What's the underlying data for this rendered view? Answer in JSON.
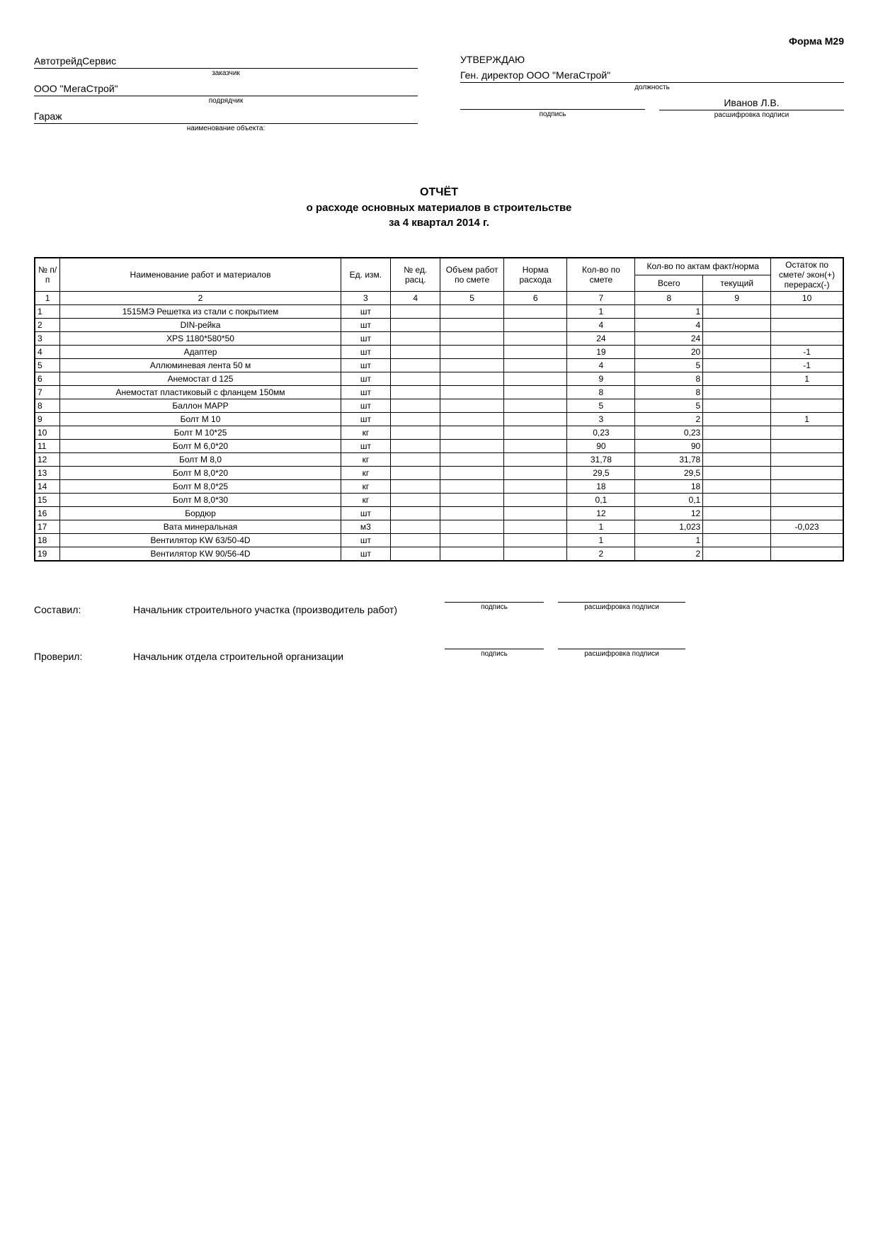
{
  "form_label": "Форма М29",
  "header": {
    "customer": "АвтотрейдСервис",
    "customer_caption": "заказчик",
    "contractor": "ООО \"МегаСтрой\"",
    "contractor_caption": "подрядчик",
    "object": "Гараж",
    "object_caption": "наименование объекта:",
    "approve": "УТВЕРЖДАЮ",
    "position": "Ген. директор ООО \"МегаСтрой\"",
    "position_caption": "должность",
    "name": "Иванов Л.В.",
    "sign_caption": "подпись",
    "name_caption": "расшифровка подписи"
  },
  "title": {
    "main": "ОТЧЁТ",
    "sub": "о расходе основных материалов в строительстве",
    "period": "за 4 квартал 2014 г."
  },
  "table": {
    "headers": {
      "num": "№ п/п",
      "name": "Наименование работ и материалов",
      "unit": "Ед. изм.",
      "calc": "№ ед. расц.",
      "volume": "Объем работ по смете",
      "norm": "Норма расхода",
      "qty": "Кол-во по смете",
      "acts": "Кол-во по актам факт/норма",
      "total": "Всего",
      "current": "текущий",
      "remainder": "Остаток по смете/ экон(+) перерасх(-)"
    },
    "col_nums": [
      "1",
      "2",
      "3",
      "4",
      "5",
      "6",
      "7",
      "8",
      "9",
      "10"
    ],
    "rows": [
      {
        "n": "1",
        "name": "1515МЭ Решетка из стали с покрытием",
        "unit": "шт",
        "qty": "1",
        "total": "1",
        "rem": ""
      },
      {
        "n": "2",
        "name": "DIN-рейка",
        "unit": "шт",
        "qty": "4",
        "total": "4",
        "rem": ""
      },
      {
        "n": "3",
        "name": "XPS 1180*580*50",
        "unit": "шт",
        "qty": "24",
        "total": "24",
        "rem": ""
      },
      {
        "n": "4",
        "name": "Адаптер",
        "unit": "шт",
        "qty": "19",
        "total": "20",
        "rem": "-1"
      },
      {
        "n": "5",
        "name": "Аллюминевая лента 50 м",
        "unit": "шт",
        "qty": "4",
        "total": "5",
        "rem": "-1"
      },
      {
        "n": "6",
        "name": "Анемостат d 125",
        "unit": "шт",
        "qty": "9",
        "total": "8",
        "rem": "1"
      },
      {
        "n": "7",
        "name": "Анемостат пластиковый с фланцем 150мм",
        "unit": "шт",
        "qty": "8",
        "total": "8",
        "rem": ""
      },
      {
        "n": "8",
        "name": "Баллон МАРР",
        "unit": "шт",
        "qty": "5",
        "total": "5",
        "rem": ""
      },
      {
        "n": "9",
        "name": "Болт М 10",
        "unit": "шт",
        "qty": "3",
        "total": "2",
        "rem": "1"
      },
      {
        "n": "10",
        "name": "Болт М 10*25",
        "unit": "кг",
        "qty": "0,23",
        "total": "0,23",
        "rem": ""
      },
      {
        "n": "11",
        "name": "Болт М 6,0*20",
        "unit": "шт",
        "qty": "90",
        "total": "90",
        "rem": ""
      },
      {
        "n": "12",
        "name": "Болт М 8,0",
        "unit": "кг",
        "qty": "31,78",
        "total": "31,78",
        "rem": ""
      },
      {
        "n": "13",
        "name": "Болт М 8,0*20",
        "unit": "кг",
        "qty": "29,5",
        "total": "29,5",
        "rem": ""
      },
      {
        "n": "14",
        "name": "Болт М 8,0*25",
        "unit": "кг",
        "qty": "18",
        "total": "18",
        "rem": ""
      },
      {
        "n": "15",
        "name": "Болт М 8,0*30",
        "unit": "кг",
        "qty": "0,1",
        "total": "0,1",
        "rem": ""
      },
      {
        "n": "16",
        "name": "Бордюр",
        "unit": "шт",
        "qty": "12",
        "total": "12",
        "rem": ""
      },
      {
        "n": "17",
        "name": "Вата минеральная",
        "unit": "м3",
        "qty": "1",
        "total": "1,023",
        "rem": "-0,023"
      },
      {
        "n": "18",
        "name": "Вентилятор KW 63/50-4D",
        "unit": "шт",
        "qty": "1",
        "total": "1",
        "rem": ""
      },
      {
        "n": "19",
        "name": "Вентилятор KW 90/56-4D",
        "unit": "шт",
        "qty": "2",
        "total": "2",
        "rem": ""
      }
    ]
  },
  "footer": {
    "compiled_label": "Составил:",
    "compiled_role": "Начальник строительного участка (производитель работ)",
    "checked_label": "Проверил:",
    "checked_role": "Начальник отдела строительной организации",
    "sign_caption": "подпись",
    "name_caption": "расшифровка подписи"
  }
}
